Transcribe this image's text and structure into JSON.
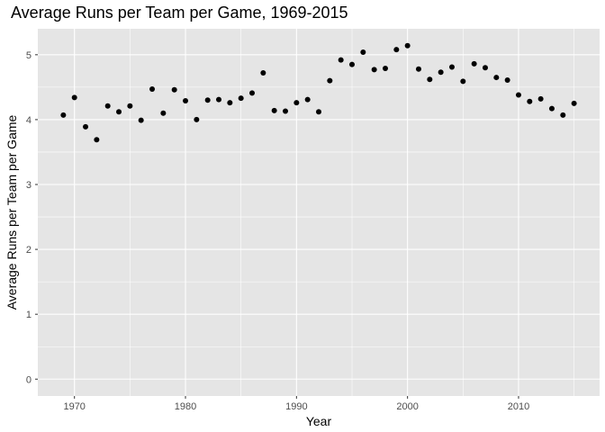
{
  "chart_data": {
    "type": "scatter",
    "title": "Average Runs per Team per Game, 1969-2015",
    "xlabel": "Year",
    "ylabel": "Average Runs per Team per Game",
    "xlim": [
      1966.7,
      2017.3
    ],
    "ylim": [
      -0.26,
      5.4
    ],
    "x_ticks": [
      1970,
      1980,
      1990,
      2000,
      2010
    ],
    "x_tick_labels": [
      "1970",
      "1980",
      "1990",
      "2000",
      "2010"
    ],
    "y_ticks": [
      0,
      1,
      2,
      3,
      4,
      5
    ],
    "y_tick_labels": [
      "0",
      "1",
      "2",
      "3",
      "4",
      "5"
    ],
    "grid": true,
    "colors": {
      "panel_bg": "#e5e5e5",
      "grid_major": "#ffffff",
      "point": "#000000",
      "tick_text": "#4d4d4d"
    },
    "points": [
      {
        "x": 1969,
        "y": 4.07
      },
      {
        "x": 1970,
        "y": 4.34
      },
      {
        "x": 1971,
        "y": 3.89
      },
      {
        "x": 1972,
        "y": 3.69
      },
      {
        "x": 1973,
        "y": 4.21
      },
      {
        "x": 1974,
        "y": 4.12
      },
      {
        "x": 1975,
        "y": 4.21
      },
      {
        "x": 1976,
        "y": 3.99
      },
      {
        "x": 1977,
        "y": 4.47
      },
      {
        "x": 1978,
        "y": 4.1
      },
      {
        "x": 1979,
        "y": 4.46
      },
      {
        "x": 1980,
        "y": 4.29
      },
      {
        "x": 1981,
        "y": 4.0
      },
      {
        "x": 1982,
        "y": 4.3
      },
      {
        "x": 1983,
        "y": 4.31
      },
      {
        "x": 1984,
        "y": 4.26
      },
      {
        "x": 1985,
        "y": 4.33
      },
      {
        "x": 1986,
        "y": 4.41
      },
      {
        "x": 1987,
        "y": 4.72
      },
      {
        "x": 1988,
        "y": 4.14
      },
      {
        "x": 1989,
        "y": 4.13
      },
      {
        "x": 1990,
        "y": 4.26
      },
      {
        "x": 1991,
        "y": 4.31
      },
      {
        "x": 1992,
        "y": 4.12
      },
      {
        "x": 1993,
        "y": 4.6
      },
      {
        "x": 1994,
        "y": 4.92
      },
      {
        "x": 1995,
        "y": 4.85
      },
      {
        "x": 1996,
        "y": 5.04
      },
      {
        "x": 1997,
        "y": 4.77
      },
      {
        "x": 1998,
        "y": 4.79
      },
      {
        "x": 1999,
        "y": 5.08
      },
      {
        "x": 2000,
        "y": 5.14
      },
      {
        "x": 2001,
        "y": 4.78
      },
      {
        "x": 2002,
        "y": 4.62
      },
      {
        "x": 2003,
        "y": 4.73
      },
      {
        "x": 2004,
        "y": 4.81
      },
      {
        "x": 2005,
        "y": 4.59
      },
      {
        "x": 2006,
        "y": 4.86
      },
      {
        "x": 2007,
        "y": 4.8
      },
      {
        "x": 2008,
        "y": 4.65
      },
      {
        "x": 2009,
        "y": 4.61
      },
      {
        "x": 2010,
        "y": 4.38
      },
      {
        "x": 2011,
        "y": 4.28
      },
      {
        "x": 2012,
        "y": 4.32
      },
      {
        "x": 2013,
        "y": 4.17
      },
      {
        "x": 2014,
        "y": 4.07
      },
      {
        "x": 2015,
        "y": 4.25
      }
    ]
  }
}
